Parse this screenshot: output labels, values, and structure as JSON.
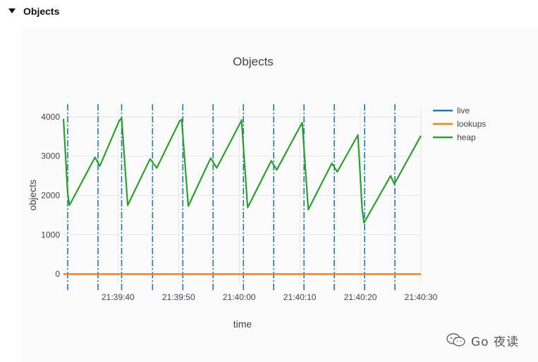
{
  "section": {
    "title": "Objects",
    "icon": "caret-down-icon"
  },
  "watermark": {
    "text": "Go 夜读",
    "icon": "wechat-icon"
  },
  "chart_data": {
    "type": "line",
    "title": "Objects",
    "xlabel": "time",
    "ylabel": "objects",
    "xlim": [
      "21:39:31",
      "21:40:30"
    ],
    "ylim": [
      -250,
      4250
    ],
    "yticks": [
      0,
      1000,
      2000,
      3000,
      4000
    ],
    "xticks": [
      {
        "t": "21:39:40",
        "label": "21:39:40"
      },
      {
        "t": "21:39:50",
        "label": "21:39:50"
      },
      {
        "t": "21:40:00",
        "label": "21:40:00"
      },
      {
        "t": "21:40:10",
        "label": "21:40:10"
      },
      {
        "t": "21:40:20",
        "label": "21:40:20"
      },
      {
        "t": "21:40:30",
        "label": "21:40:30"
      }
    ],
    "grid": true,
    "legend_position": "top-right",
    "gc_events": [
      "21:39:31.7",
      "21:39:36.7",
      "21:39:40.6",
      "21:39:45.7",
      "21:39:50.7",
      "21:39:55.7",
      "21:40:00.7",
      "21:40:05.7",
      "21:40:10.7",
      "21:40:15.7",
      "21:40:20.7",
      "21:40:25.7"
    ],
    "series": [
      {
        "name": "live",
        "color": "#1f77b4",
        "points": [
          [
            "21:39:31",
            0
          ],
          [
            "21:40:30",
            0
          ]
        ]
      },
      {
        "name": "lookups",
        "color": "#ff7f0e",
        "points": [
          [
            "21:39:31",
            0
          ],
          [
            "21:40:30",
            0
          ]
        ]
      },
      {
        "name": "heap",
        "color": "#2ca02c",
        "points": [
          [
            "21:39:31",
            3950
          ],
          [
            "21:39:31.7",
            2050
          ],
          [
            "21:39:32",
            1750
          ],
          [
            "21:39:36.2",
            2970
          ],
          [
            "21:39:37",
            2750
          ],
          [
            "21:39:40.2",
            3900
          ],
          [
            "21:39:40.6",
            3970
          ],
          [
            "21:39:41.6",
            1750
          ],
          [
            "21:39:45.3",
            2930
          ],
          [
            "21:39:46.4",
            2700
          ],
          [
            "21:39:50.2",
            3900
          ],
          [
            "21:39:50.5",
            3930
          ],
          [
            "21:39:51.6",
            1730
          ],
          [
            "21:39:55.3",
            2950
          ],
          [
            "21:39:56.3",
            2700
          ],
          [
            "21:40:00.2",
            3850
          ],
          [
            "21:40:00.4",
            3920
          ],
          [
            "21:40:01.4",
            1690
          ],
          [
            "21:40:05.3",
            2880
          ],
          [
            "21:40:06.2",
            2650
          ],
          [
            "21:40:10.2",
            3800
          ],
          [
            "21:40:10.4",
            3850
          ],
          [
            "21:40:11.4",
            1640
          ],
          [
            "21:40:15.3",
            2820
          ],
          [
            "21:40:16.2",
            2600
          ],
          [
            "21:40:19.6",
            3540
          ],
          [
            "21:40:20.3",
            1650
          ],
          [
            "21:40:20.6",
            1300
          ],
          [
            "21:40:25",
            2500
          ],
          [
            "21:40:25.6",
            2290
          ],
          [
            "21:40:30",
            3520
          ]
        ]
      }
    ]
  }
}
